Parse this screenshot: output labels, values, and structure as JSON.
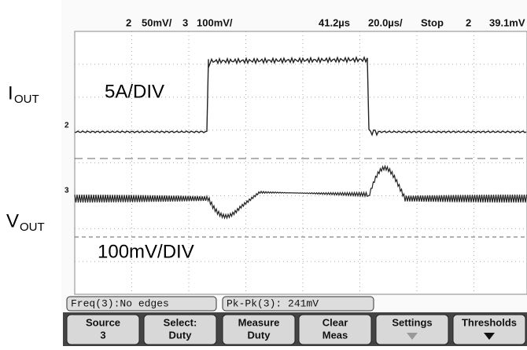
{
  "header": {
    "ch2_label": "2",
    "ch2_scale": "50mV/",
    "ch3_label": "3",
    "ch3_scale": "100mV/",
    "trigger_time": "41.2µs",
    "time_scale": "20.0µs/",
    "run_state": "Stop",
    "trigger_source": "2",
    "trigger_level": "39.1mV"
  },
  "screen": {
    "ch2_marker": "2",
    "ch3_marker": "3"
  },
  "labels": {
    "iout_main": "I",
    "iout_sub": "OUT",
    "iout_scale": "5A/DIV",
    "vout_main": "V",
    "vout_sub": "OUT",
    "vout_scale": "100mV/DIV"
  },
  "status": {
    "measurement_1": "Freq(3):No edges",
    "measurement_2": "Pk-Pk(3): 241mV"
  },
  "softkeys": [
    {
      "label": "Source",
      "value": "3"
    },
    {
      "label": "Select:",
      "value": "Duty"
    },
    {
      "label": "Measure",
      "value": "Duty"
    },
    {
      "label": "Clear",
      "value": "Meas"
    },
    {
      "label": "Settings"
    },
    {
      "label": "Thresholds"
    }
  ]
}
